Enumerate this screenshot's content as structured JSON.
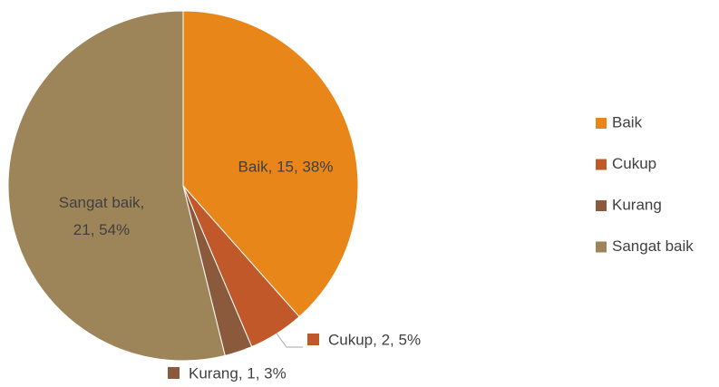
{
  "chart_data": {
    "type": "pie",
    "categories": [
      "Baik",
      "Cukup",
      "Kurang",
      "Sangat baik"
    ],
    "values": [
      15,
      2,
      1,
      21
    ],
    "value_labels": [
      "Baik, 15, 38%",
      "Cukup, 2, 5%",
      "Kurang, 1, 3%",
      "Sangat baik, 21, 54%"
    ],
    "colors": [
      "#e8861a",
      "#c0582a",
      "#8b5a3c",
      "#9e8559"
    ],
    "legend": "right"
  }
}
